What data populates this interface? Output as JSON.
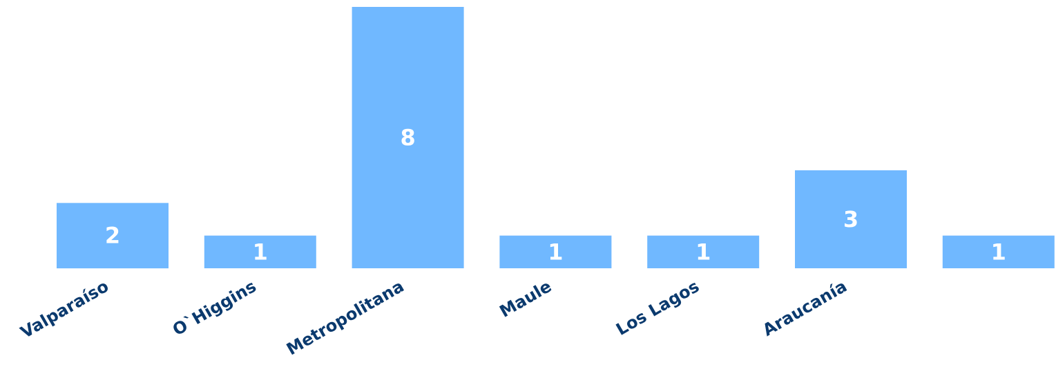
{
  "chart_data": {
    "type": "bar",
    "categories": [
      "Valparaíso",
      "O`Higgins",
      "Metropolitana",
      "Maule",
      "Los Lagos",
      "Araucanía",
      ""
    ],
    "values": [
      2,
      1,
      8,
      1,
      1,
      3,
      1
    ],
    "ylim": [
      0,
      8
    ],
    "grid": false,
    "legend": "none",
    "title": "",
    "xlabel": "",
    "ylabel": "",
    "colors": {
      "bar": "#70b8ff",
      "value_label": "#ffffff",
      "category_label": "#0b3a6e"
    }
  }
}
